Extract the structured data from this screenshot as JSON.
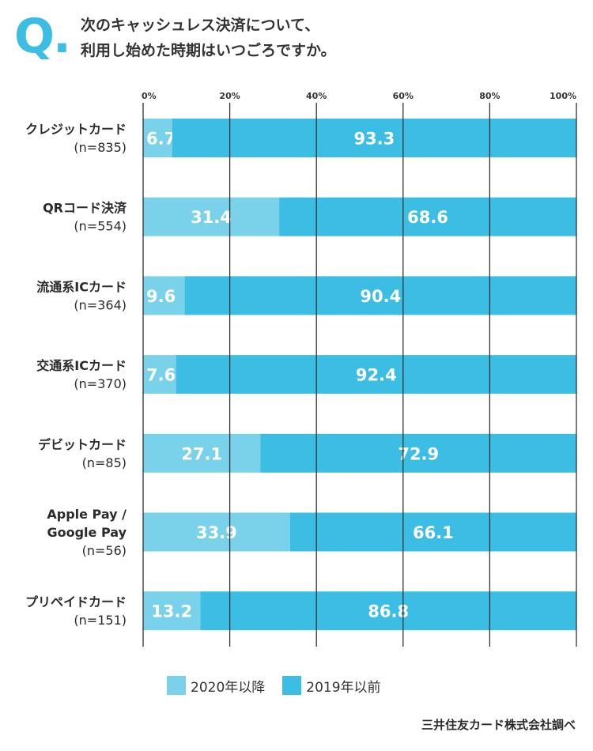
{
  "header": {
    "q_mark": "Q.",
    "title_line1": "次のキャッシュレス決済について、",
    "title_line2": "利用し始めた時期はいつごろですか。"
  },
  "colors": {
    "accent": "#3bbde4",
    "series_2020": "#79d1ea",
    "series_2019": "#3bbde4",
    "gridline": "#333333"
  },
  "chart_data": {
    "type": "bar",
    "orientation": "horizontal",
    "stacked": true,
    "percent": true,
    "categories": [
      [
        "クレジットカード",
        "(n=835)"
      ],
      [
        "QRコード決済",
        "(n=554)"
      ],
      [
        "流通系ICカード",
        "(n=364)"
      ],
      [
        "交通系ICカード",
        "(n=370)"
      ],
      [
        "デビットカード",
        "(n=85)"
      ],
      [
        "Apple Pay /",
        "Google Pay",
        "(n=56)"
      ],
      [
        "プリペイドカード",
        "(n=151)"
      ]
    ],
    "series": [
      {
        "name": "2020年以降",
        "values": [
          6.7,
          31.4,
          9.6,
          7.6,
          27.1,
          33.9,
          13.2
        ]
      },
      {
        "name": "2019年以前",
        "values": [
          93.3,
          68.6,
          90.4,
          92.4,
          72.9,
          66.1,
          86.8
        ]
      }
    ],
    "xlim": [
      0,
      100
    ],
    "xticks": [
      "0%",
      "20%",
      "40%",
      "60%",
      "80%",
      "100%"
    ],
    "xtick_values": [
      0,
      20,
      40,
      60,
      80,
      100
    ],
    "grid": true,
    "legend_position": "bottom"
  },
  "legend": {
    "items": [
      "2020年以降",
      "2019年以前"
    ]
  },
  "source": "三井住友カード株式会社調べ"
}
